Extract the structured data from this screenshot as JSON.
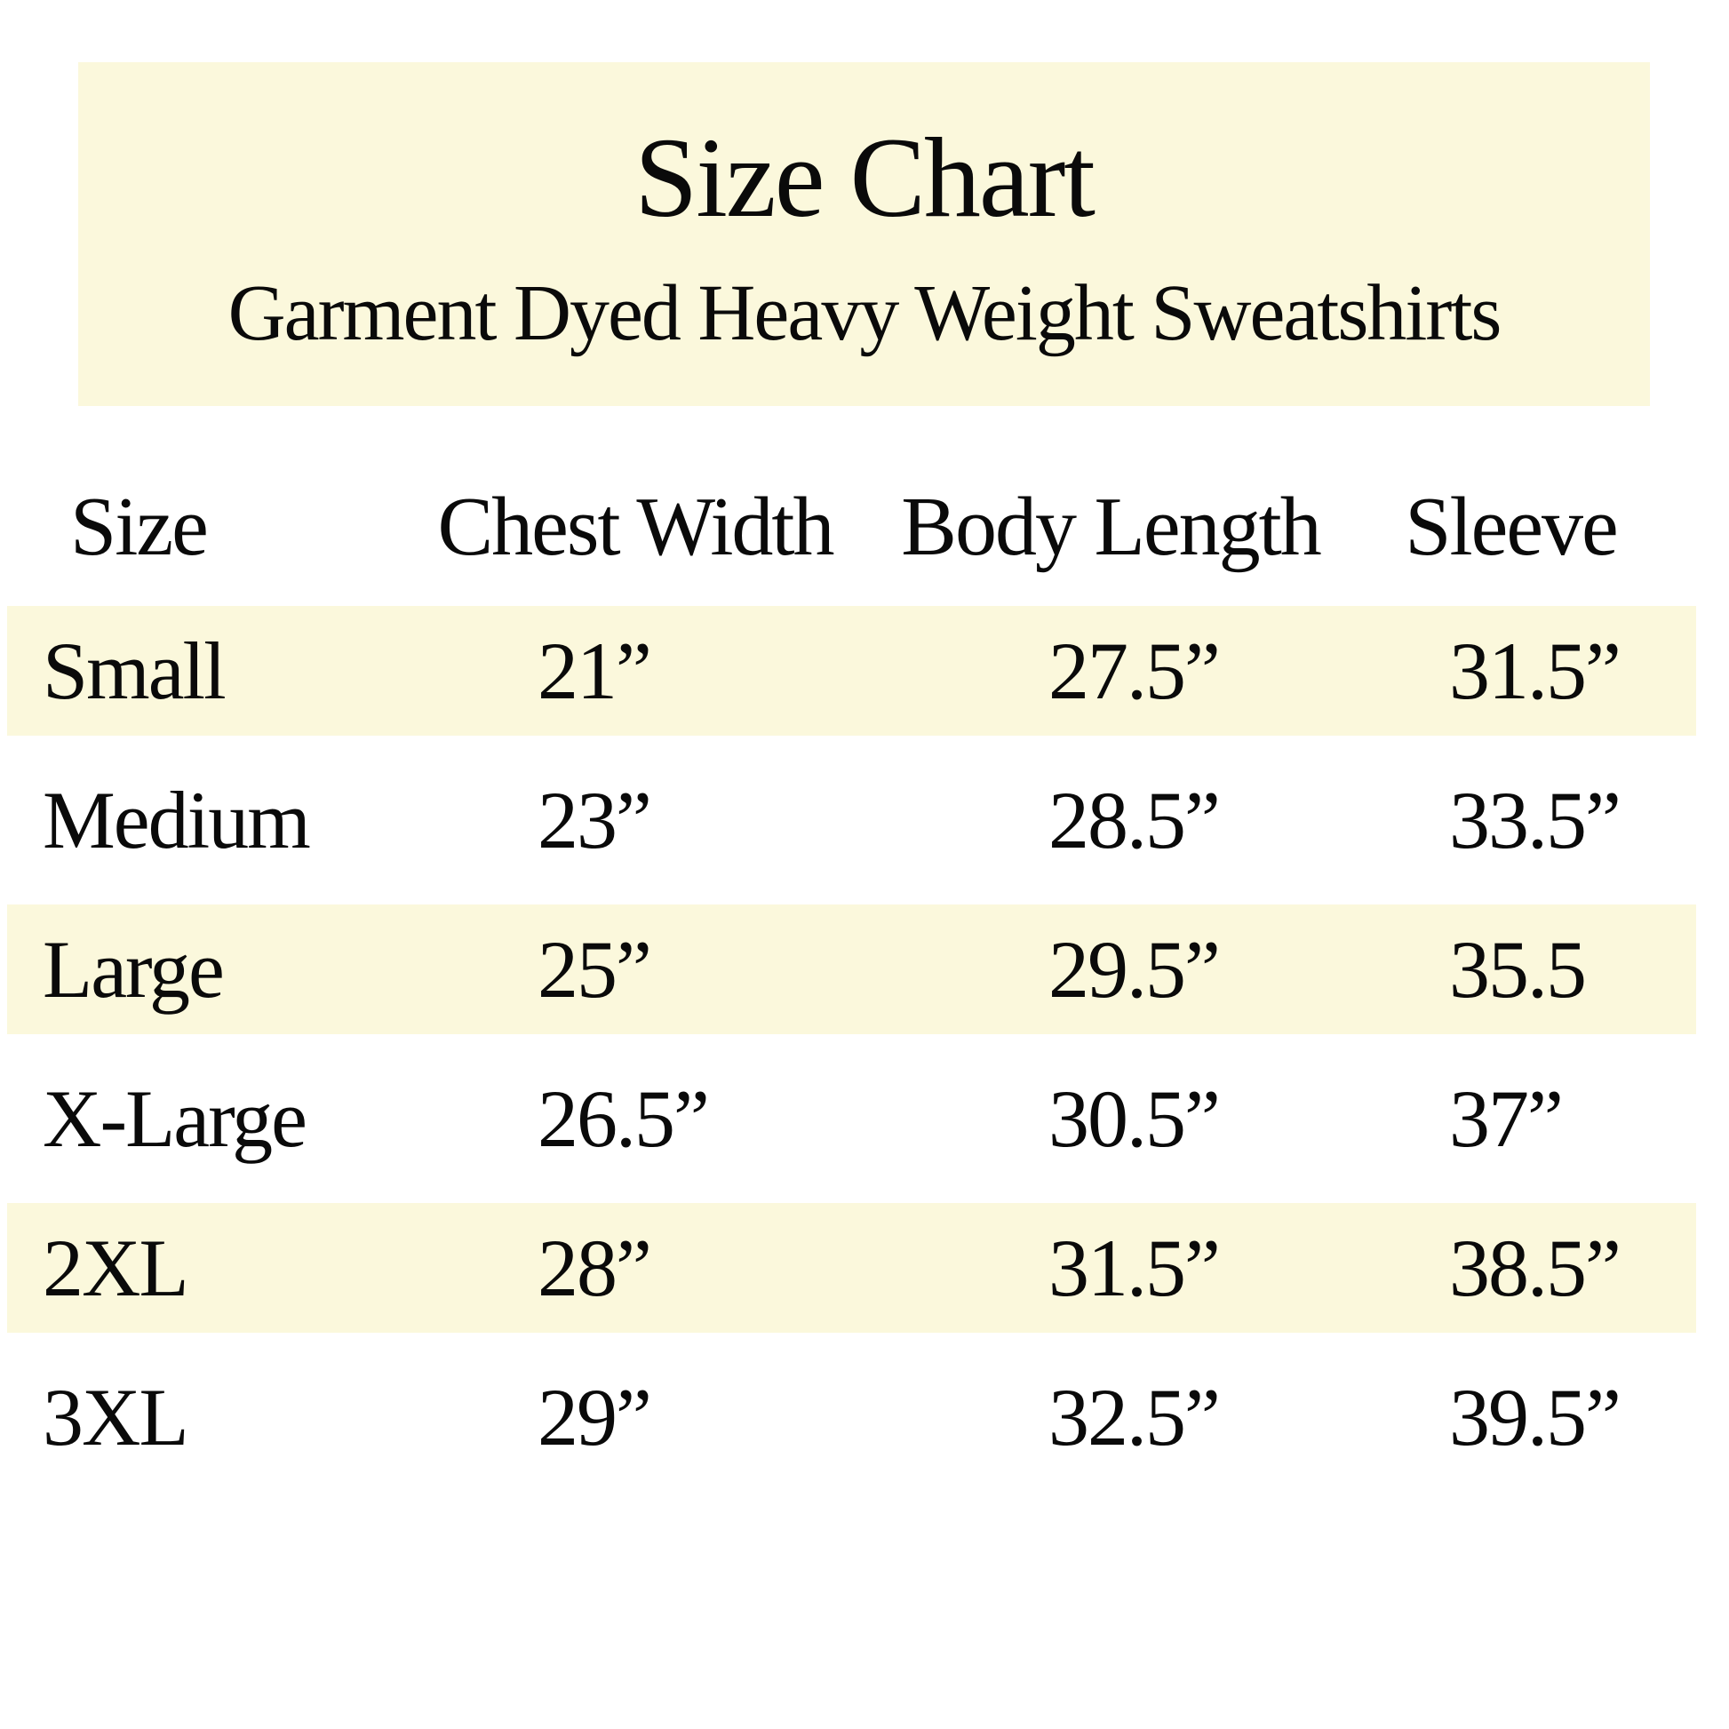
{
  "header": {
    "title": "Size Chart",
    "subtitle": "Garment Dyed Heavy Weight Sweatshirts"
  },
  "chart_data": {
    "type": "table",
    "title": "Size Chart",
    "subtitle": "Garment Dyed Heavy Weight Sweatshirts",
    "columns": [
      "Size",
      "Chest Width",
      "Body Length",
      "Sleeve"
    ],
    "rows": [
      {
        "size": "Small",
        "chest_width": "21”",
        "body_length": "27.5”",
        "sleeve": "31.5”"
      },
      {
        "size": "Medium",
        "chest_width": "23”",
        "body_length": "28.5”",
        "sleeve": "33.5”"
      },
      {
        "size": "Large",
        "chest_width": "25”",
        "body_length": "29.5”",
        "sleeve": "35.5"
      },
      {
        "size": "X-Large",
        "chest_width": "26.5”",
        "body_length": "30.5”",
        "sleeve": "37”"
      },
      {
        "size": "2XL",
        "chest_width": "28”",
        "body_length": "31.5”",
        "sleeve": "38.5”"
      },
      {
        "size": "3XL",
        "chest_width": "29”",
        "body_length": "32.5”",
        "sleeve": "39.5”"
      }
    ],
    "layout_hints": {
      "banded_rows": [
        "Small",
        "Large",
        "2XL"
      ],
      "band_color": "#FBF8DC",
      "background_color": "#FFFFFF",
      "text_color": "#0A0A0A"
    }
  }
}
